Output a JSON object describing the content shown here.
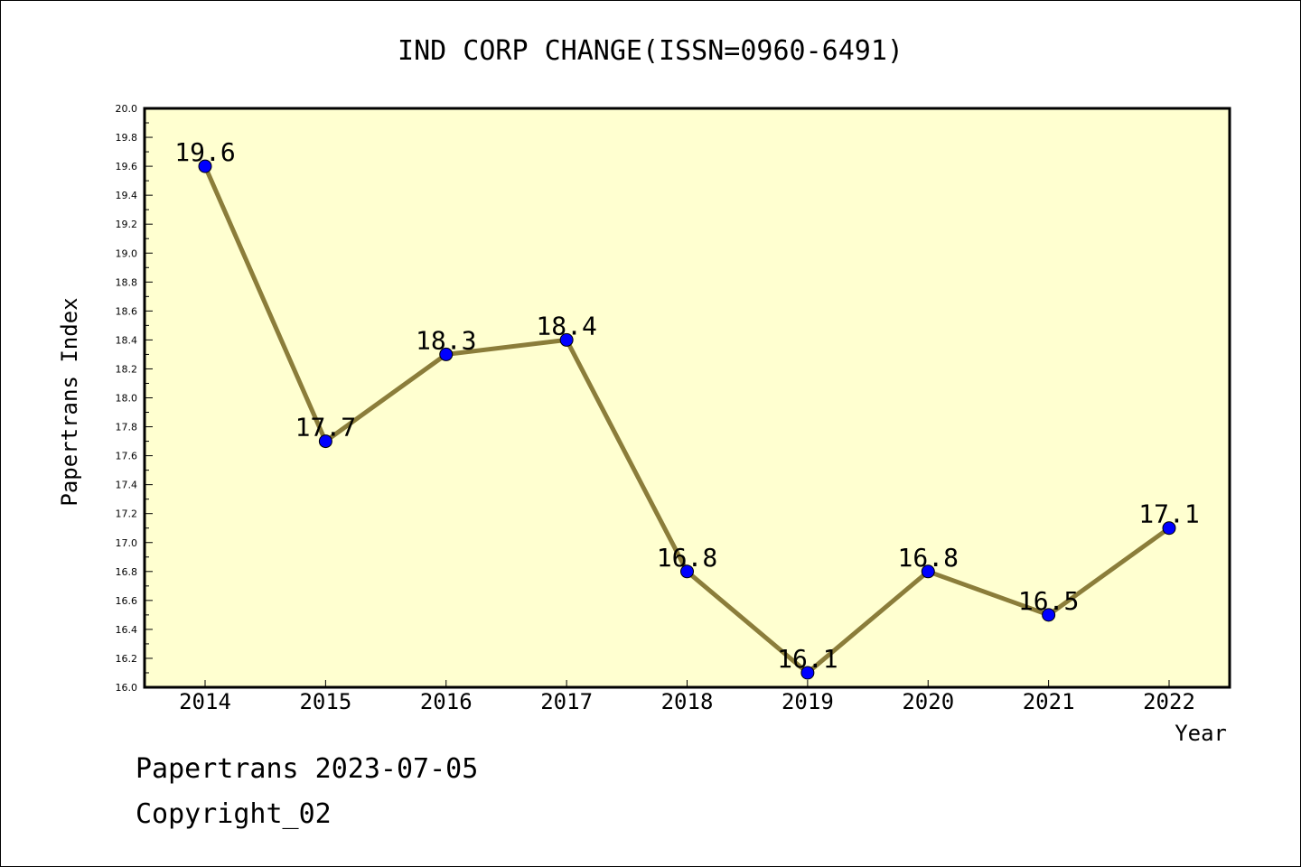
{
  "chart_data": {
    "type": "line",
    "title": "IND CORP CHANGE(ISSN=0960-6491)",
    "xlabel": "Year",
    "ylabel": "Papertrans Index",
    "categories": [
      "2014",
      "2015",
      "2016",
      "2017",
      "2018",
      "2019",
      "2020",
      "2021",
      "2022"
    ],
    "series": [
      {
        "values": [
          19.6,
          17.7,
          18.3,
          18.4,
          16.8,
          16.1,
          16.8,
          16.5,
          17.1
        ]
      }
    ],
    "data_labels": [
      "19.6",
      "17.7",
      "18.3",
      "18.4",
      "16.8",
      "16.1",
      "16.8",
      "16.5",
      "17.1"
    ],
    "ylim": [
      16.0,
      20.0
    ],
    "yticks": [
      "16.0",
      "16.2",
      "16.4",
      "16.6",
      "16.8",
      "17.0",
      "17.2",
      "17.4",
      "17.6",
      "17.8",
      "18.0",
      "18.2",
      "18.4",
      "18.6",
      "18.8",
      "19.0",
      "19.2",
      "19.4",
      "19.6",
      "19.8",
      "20.0"
    ],
    "grid": false,
    "legend": "none",
    "colors": {
      "plot_background": "#ffffd0",
      "line": "#8b7d3a",
      "marker": "#0000ff",
      "axis": "#000000"
    }
  },
  "footer": {
    "line1": "Papertrans 2023-07-05",
    "line2": "Copyright_02"
  }
}
